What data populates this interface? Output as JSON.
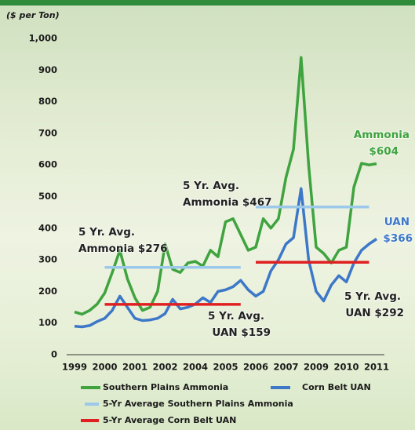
{
  "chart_data": {
    "type": "line",
    "ylabel": "($ per Ton)",
    "ylim": [
      0,
      1000
    ],
    "yticks": [
      0,
      100,
      200,
      300,
      400,
      500,
      600,
      700,
      800,
      900,
      {
        "value": 1000,
        "label": "1,000"
      }
    ],
    "categories": [
      "1999",
      null,
      null,
      null,
      "2000",
      null,
      null,
      null,
      "2001",
      null,
      null,
      null,
      "2002",
      null,
      null,
      null,
      "2004",
      null,
      null,
      null,
      "2005",
      null,
      null,
      null,
      "2006",
      null,
      null,
      null,
      "2007",
      null,
      null,
      null,
      "2009",
      null,
      null,
      null,
      "2010",
      null,
      null,
      null,
      "2011"
    ],
    "series": [
      {
        "name": "Southern Plains Ammonia",
        "color": "#3fa33f",
        "width": 3.5,
        "values": [
          135,
          128,
          140,
          160,
          195,
          260,
          330,
          240,
          180,
          140,
          150,
          200,
          350,
          270,
          260,
          290,
          295,
          280,
          330,
          310,
          420,
          430,
          380,
          330,
          340,
          430,
          400,
          430,
          560,
          650,
          940,
          600,
          340,
          320,
          290,
          330,
          340,
          530,
          605,
          600,
          604
        ]
      },
      {
        "name": "Corn Belt UAN",
        "color": "#3d78c8",
        "width": 3.5,
        "values": [
          90,
          88,
          92,
          105,
          115,
          140,
          185,
          150,
          115,
          108,
          110,
          115,
          130,
          175,
          145,
          150,
          160,
          180,
          165,
          200,
          205,
          215,
          235,
          205,
          185,
          200,
          265,
          300,
          350,
          370,
          525,
          300,
          200,
          170,
          220,
          250,
          230,
          290,
          330,
          350,
          366
        ]
      },
      {
        "name": "5-Yr Average Southern Plains Ammonia",
        "color": "#9cc8ea",
        "width": 3.5,
        "values": [
          null,
          null,
          null,
          null,
          276,
          276,
          276,
          276,
          276,
          276,
          276,
          276,
          276,
          276,
          276,
          276,
          276,
          276,
          276,
          276,
          276,
          276,
          276,
          null,
          467,
          467,
          467,
          467,
          467,
          467,
          467,
          467,
          467,
          467,
          467,
          467,
          467,
          467,
          467,
          467,
          null
        ]
      },
      {
        "name": "5-Yr Average Corn Belt UAN",
        "color": "#e02020",
        "width": 3.5,
        "values": [
          null,
          null,
          null,
          null,
          159,
          159,
          159,
          159,
          159,
          159,
          159,
          159,
          159,
          159,
          159,
          159,
          159,
          159,
          159,
          159,
          159,
          159,
          159,
          null,
          292,
          292,
          292,
          292,
          292,
          292,
          292,
          292,
          292,
          292,
          292,
          292,
          292,
          292,
          292,
          292,
          null
        ]
      }
    ],
    "annotations": [
      {
        "text": [
          "5 Yr. Avg.",
          "Ammonia $276"
        ],
        "color": "#222222"
      },
      {
        "text": [
          "5 Yr. Avg.",
          "Ammonia $467"
        ],
        "color": "#222222"
      },
      {
        "text": [
          "Ammonia",
          "$604"
        ],
        "color": "#3fa33f"
      },
      {
        "text": [
          "UAN",
          "$366"
        ],
        "color": "#3d78c8"
      },
      {
        "text": [
          "5 Yr. Avg.",
          "UAN $159"
        ],
        "color": "#222222"
      },
      {
        "text": [
          "5 Yr. Avg.",
          "UAN $292"
        ],
        "color": "#222222"
      }
    ]
  }
}
